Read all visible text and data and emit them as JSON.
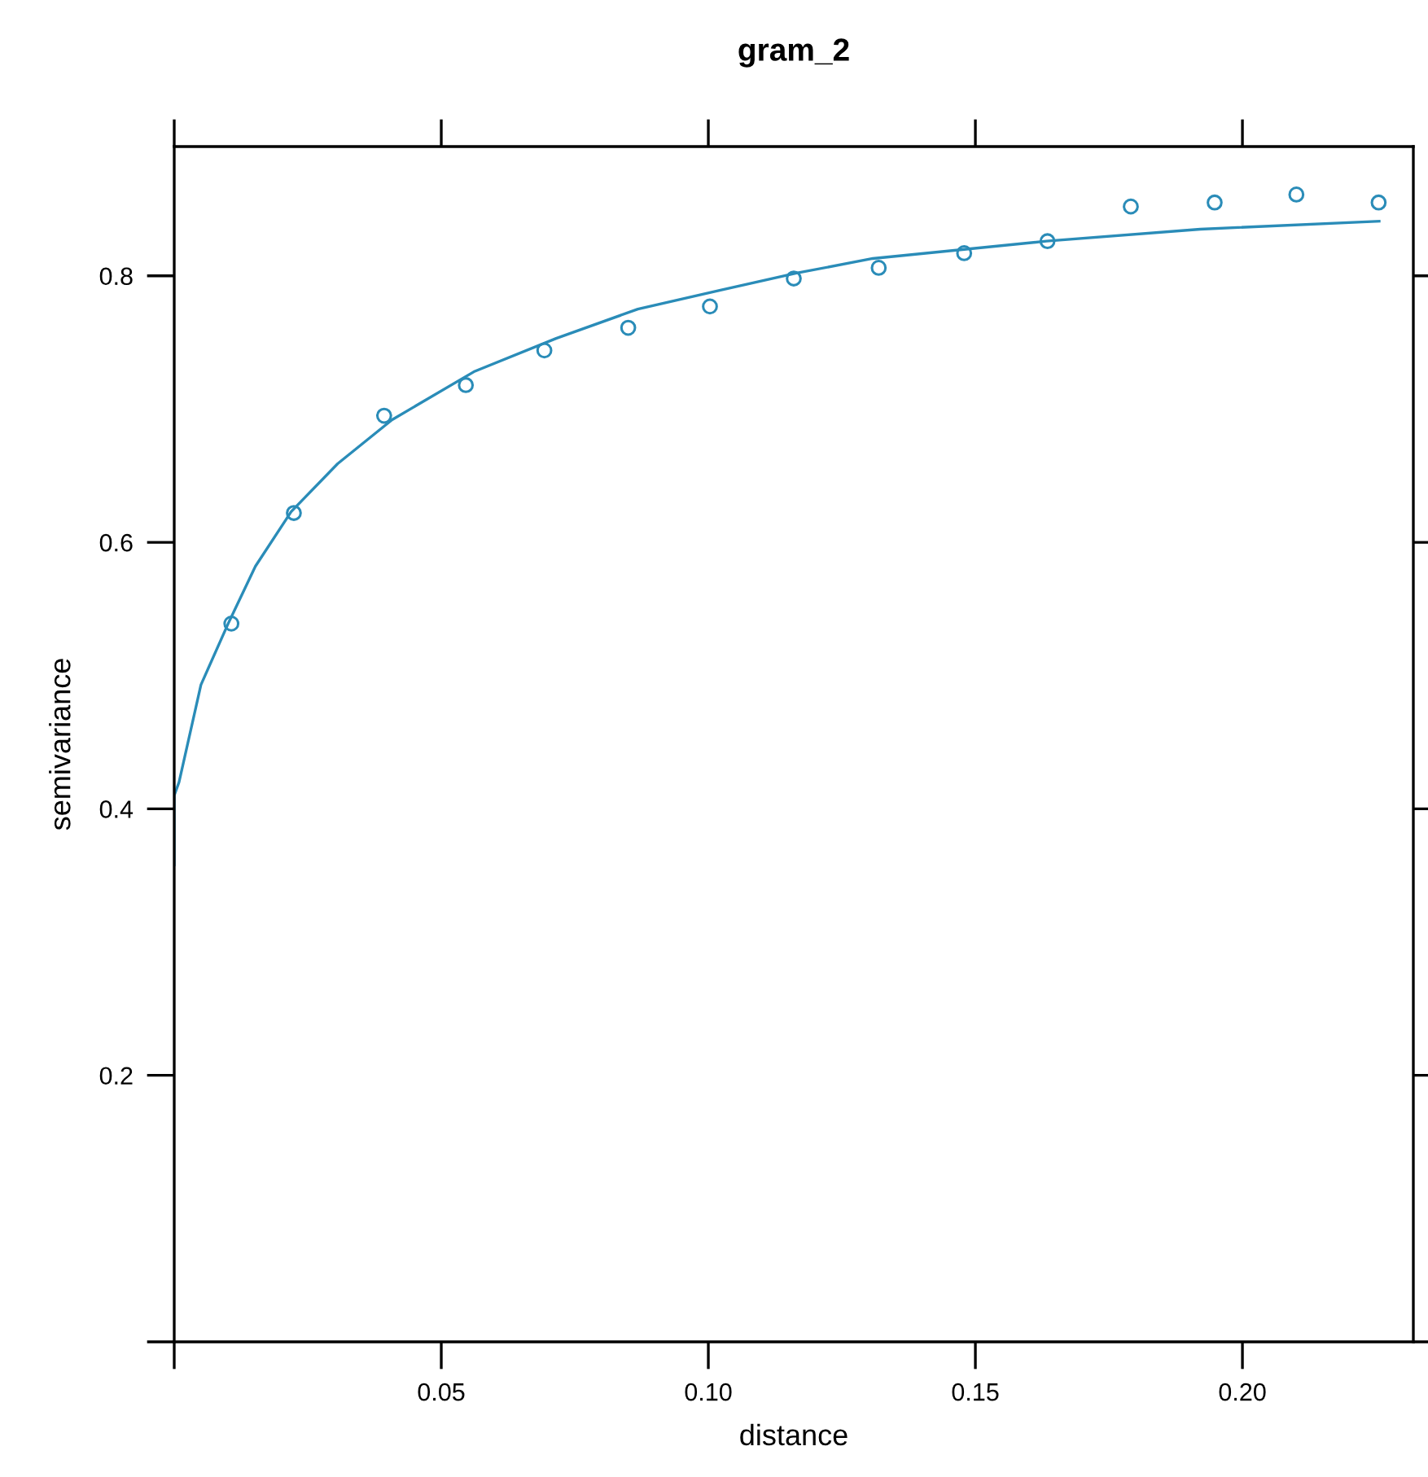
{
  "chart_data": {
    "type": "scatter",
    "title": "gram_2",
    "xlabel": "distance",
    "ylabel": "semivariance",
    "xlim": [
      0,
      0.232
    ],
    "ylim": [
      0,
      0.897
    ],
    "xticks": [
      {
        "value": 0,
        "label": null
      },
      {
        "value": 0.05,
        "label": "0.05"
      },
      {
        "value": 0.1,
        "label": "0.10"
      },
      {
        "value": 0.15,
        "label": "0.15"
      },
      {
        "value": 0.2,
        "label": "0.20"
      }
    ],
    "yticks": [
      {
        "value": 0,
        "label": null
      },
      0.2,
      0.4,
      0.6,
      0.8
    ],
    "grid": false,
    "legend": false,
    "marker": "circle",
    "series": [
      {
        "color": "#2a8cb8",
        "x": [
          0.0107,
          0.0224,
          0.0393,
          0.0546,
          0.0693,
          0.085,
          0.1003,
          0.116,
          0.1319,
          0.1479,
          0.1635,
          0.1791,
          0.1948,
          0.2101,
          0.2255
        ],
        "values": [
          0.539,
          0.622,
          0.695,
          0.718,
          0.744,
          0.761,
          0.777,
          0.798,
          0.806,
          0.817,
          0.826,
          0.852,
          0.855,
          0.861,
          0.855
        ]
      },
      {
        "type": "line",
        "color": "#2a8cb8",
        "marker": "none",
        "line_style": "solid",
        "x": [
          0,
          0,
          0.0009,
          0.005,
          0.0101,
          0.0152,
          0.0219,
          0.0306,
          0.0408,
          0.0561,
          0.0715,
          0.0868,
          0.1021,
          0.1165,
          0.1308,
          0.1633,
          0.1921,
          0.2256
        ],
        "values": [
          0.358,
          0.41,
          0.42,
          0.493,
          0.539,
          0.582,
          0.623,
          0.659,
          0.692,
          0.728,
          0.753,
          0.775,
          0.789,
          0.802,
          0.813,
          0.826,
          0.835,
          0.841
        ]
      }
    ]
  }
}
